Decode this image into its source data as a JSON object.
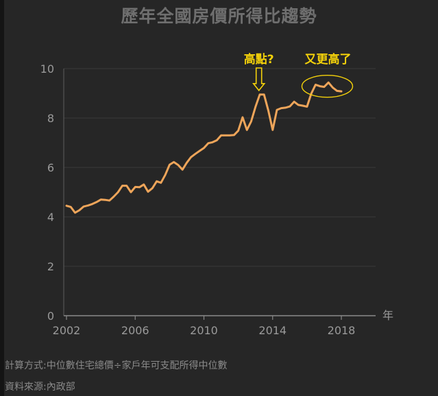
{
  "chart_data": {
    "type": "line",
    "title": "歷年全國房價所得比趨勢",
    "xlabel": "年",
    "ylabel": "",
    "xlim": [
      2002,
      2020.5
    ],
    "ylim": [
      0,
      10
    ],
    "xticks": [
      2002,
      2006,
      2010,
      2014,
      2018
    ],
    "yticks": [
      0,
      2,
      4,
      6,
      8,
      10
    ],
    "line_color": "#eea55a",
    "annotation_color": "#f5d20a",
    "series": [
      {
        "name": "",
        "x": [
          2002.0,
          2002.25,
          2002.5,
          2002.75,
          2003.0,
          2003.25,
          2003.5,
          2003.75,
          2004.0,
          2004.25,
          2004.5,
          2004.75,
          2005.0,
          2005.25,
          2005.5,
          2005.75,
          2006.0,
          2006.25,
          2006.5,
          2006.75,
          2007.0,
          2007.25,
          2007.5,
          2007.75,
          2008.0,
          2008.25,
          2008.5,
          2008.75,
          2009.0,
          2009.25,
          2009.5,
          2009.75,
          2010.0,
          2010.25,
          2010.5,
          2010.75,
          2011.0,
          2011.25,
          2011.5,
          2011.75,
          2012.0,
          2012.25,
          2012.5,
          2012.75,
          2013.0,
          2013.25,
          2013.5,
          2013.75,
          2014.0,
          2014.25,
          2014.5,
          2014.75,
          2015.0,
          2015.25,
          2015.5,
          2015.75,
          2016.0,
          2016.25,
          2016.5,
          2016.75,
          2017.0,
          2017.25,
          2017.5,
          2017.75,
          2018.0
        ],
        "values": [
          4.45,
          4.4,
          4.17,
          4.27,
          4.42,
          4.46,
          4.52,
          4.6,
          4.7,
          4.69,
          4.66,
          4.82,
          5.0,
          5.26,
          5.26,
          5.0,
          5.21,
          5.2,
          5.31,
          5.02,
          5.16,
          5.44,
          5.38,
          5.7,
          6.11,
          6.22,
          6.1,
          5.91,
          6.19,
          6.42,
          6.55,
          6.67,
          6.79,
          6.98,
          7.02,
          7.1,
          7.3,
          7.3,
          7.3,
          7.31,
          7.49,
          8.03,
          7.52,
          7.86,
          8.45,
          8.95,
          8.95,
          8.3,
          7.52,
          8.33,
          8.4,
          8.42,
          8.47,
          8.66,
          8.53,
          8.5,
          8.46,
          8.99,
          9.35,
          9.29,
          9.26,
          9.44,
          9.23,
          9.1,
          9.08
        ]
      }
    ],
    "annotations": [
      {
        "text": "高點?",
        "x": 2013.2,
        "y": 8.95,
        "marker": "arrow"
      },
      {
        "text": "又更高了",
        "x": 2017.3,
        "y": 9.3,
        "marker": "ellipse"
      }
    ],
    "grid": "horizontal",
    "legend": "none"
  },
  "footnotes": {
    "method": "計算方式:中位數住宅總價÷家戶年可支配所得中位數",
    "source": "資料來源:內政部"
  }
}
